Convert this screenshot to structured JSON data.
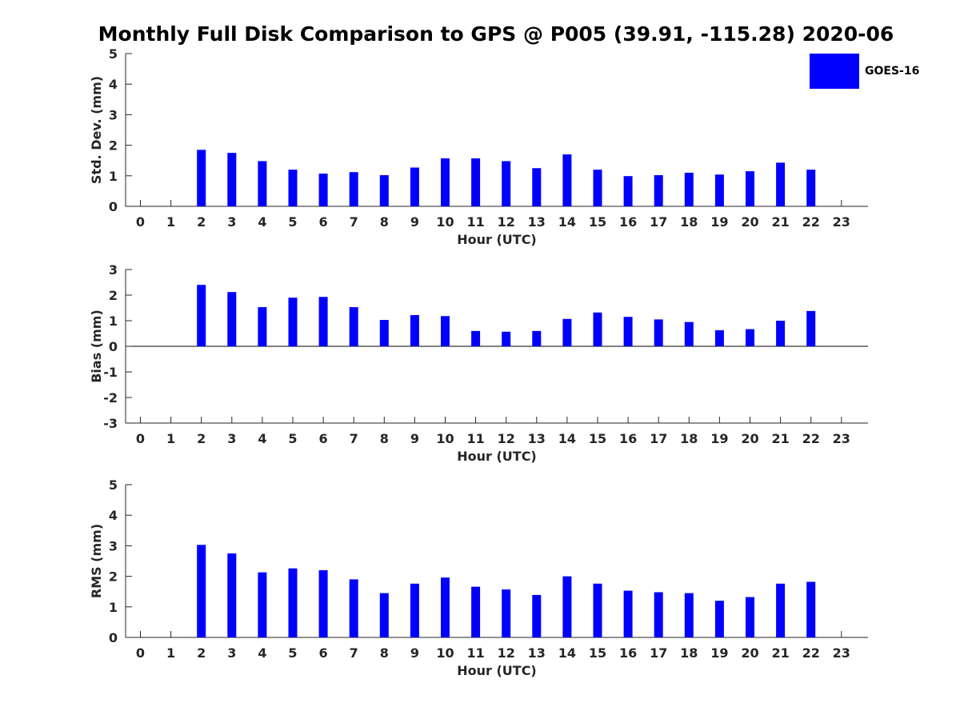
{
  "title": "Monthly Full Disk Comparison to GPS @ P005 (39.91, -115.28) 2020-06",
  "legend": {
    "label": "GOES-16",
    "color": "#0000ff"
  },
  "chart_data": [
    {
      "type": "bar",
      "ylabel": "Std. Dev. (mm)",
      "xlabel": "Hour (UTC)",
      "ylim": [
        0,
        5
      ],
      "yticks": [
        "0",
        "1",
        "2",
        "3",
        "4",
        "5"
      ],
      "x": [
        "0",
        "1",
        "2",
        "3",
        "4",
        "5",
        "6",
        "7",
        "8",
        "9",
        "10",
        "11",
        "12",
        "13",
        "14",
        "15",
        "16",
        "17",
        "18",
        "19",
        "20",
        "21",
        "22",
        "23"
      ],
      "series": [
        {
          "name": "GOES-16",
          "values": [
            null,
            null,
            1.85,
            1.75,
            1.48,
            1.2,
            1.07,
            1.12,
            1.02,
            1.27,
            1.57,
            1.57,
            1.48,
            1.25,
            1.7,
            1.2,
            0.99,
            1.02,
            1.1,
            1.04,
            1.15,
            1.43,
            1.2,
            null
          ]
        }
      ]
    },
    {
      "type": "bar",
      "ylabel": "Bias (mm)",
      "xlabel": "Hour (UTC)",
      "ylim": [
        -3,
        3
      ],
      "yticks": [
        "-3",
        "-2",
        "-1",
        "0",
        "1",
        "2",
        "3"
      ],
      "x": [
        "0",
        "1",
        "2",
        "3",
        "4",
        "5",
        "6",
        "7",
        "8",
        "9",
        "10",
        "11",
        "12",
        "13",
        "14",
        "15",
        "16",
        "17",
        "18",
        "19",
        "20",
        "21",
        "22",
        "23"
      ],
      "series": [
        {
          "name": "GOES-16",
          "values": [
            null,
            null,
            2.4,
            2.12,
            1.53,
            1.9,
            1.93,
            1.53,
            1.03,
            1.22,
            1.18,
            0.6,
            0.57,
            0.6,
            1.07,
            1.32,
            1.15,
            1.05,
            0.95,
            0.63,
            0.67,
            1.0,
            1.38,
            null
          ]
        }
      ]
    },
    {
      "type": "bar",
      "ylabel": "RMS (mm)",
      "xlabel": "Hour (UTC)",
      "ylim": [
        0,
        5
      ],
      "yticks": [
        "0",
        "1",
        "2",
        "3",
        "4",
        "5"
      ],
      "x": [
        "0",
        "1",
        "2",
        "3",
        "4",
        "5",
        "6",
        "7",
        "8",
        "9",
        "10",
        "11",
        "12",
        "13",
        "14",
        "15",
        "16",
        "17",
        "18",
        "19",
        "20",
        "21",
        "22",
        "23"
      ],
      "series": [
        {
          "name": "GOES-16",
          "values": [
            null,
            null,
            3.03,
            2.75,
            2.13,
            2.26,
            2.2,
            1.9,
            1.45,
            1.76,
            1.96,
            1.66,
            1.57,
            1.39,
            2.0,
            1.76,
            1.53,
            1.48,
            1.45,
            1.2,
            1.32,
            1.76,
            1.82,
            null
          ]
        }
      ]
    }
  ]
}
